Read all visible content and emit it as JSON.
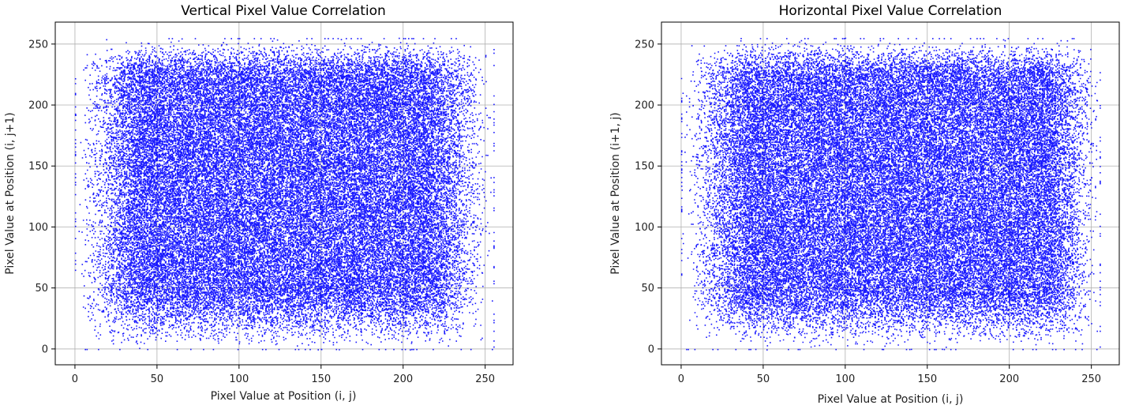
{
  "chart_data": [
    {
      "type": "scatter",
      "title": "Vertical Pixel Value Correlation",
      "xlabel": "Pixel Value at Position (i, j)",
      "ylabel": "Pixel Value at Position (i, j+1)",
      "xlim": [
        -12,
        267
      ],
      "ylim": [
        -13,
        268
      ],
      "xticks": [
        0,
        50,
        100,
        150,
        200,
        250
      ],
      "yticks": [
        0,
        50,
        100,
        150,
        200,
        250
      ],
      "grid": true,
      "point_color": "#0000ff",
      "distribution": {
        "x_range": [
          0,
          255
        ],
        "y_range": [
          0,
          255
        ],
        "dense_x": [
          40,
          215
        ],
        "dense_y": [
          45,
          225
        ]
      }
    },
    {
      "type": "scatter",
      "title": "Horizontal Pixel Value Correlation",
      "xlabel": "Pixel Value at Position (i, j)",
      "ylabel": "Pixel Value at Position (i+1, j)",
      "xlim": [
        -12,
        267
      ],
      "ylim": [
        -13,
        268
      ],
      "xticks": [
        0,
        50,
        100,
        150,
        200,
        250
      ],
      "yticks": [
        0,
        50,
        100,
        150,
        200,
        250
      ],
      "grid": true,
      "point_color": "#0000ff",
      "distribution": {
        "x_range": [
          0,
          255
        ],
        "y_range": [
          0,
          255
        ],
        "dense_x": [
          40,
          225
        ],
        "dense_y": [
          45,
          225
        ]
      }
    }
  ]
}
